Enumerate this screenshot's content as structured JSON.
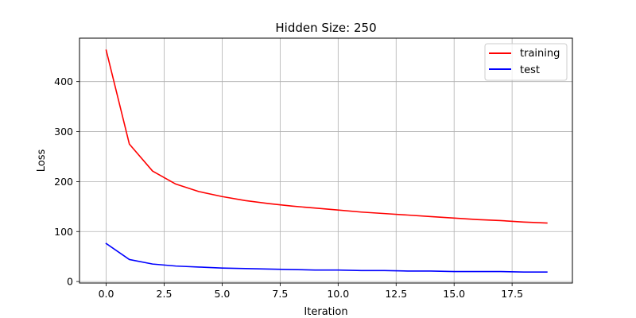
{
  "chart_data": {
    "type": "line",
    "title": "Hidden Size: 250",
    "xlabel": "Iteration",
    "ylabel": "Loss",
    "xlim": [
      -1.15,
      20.1
    ],
    "ylim": [
      -3,
      487
    ],
    "xticks": [
      0.0,
      2.5,
      5.0,
      7.5,
      10.0,
      12.5,
      15.0,
      17.5
    ],
    "xtick_labels": [
      "0.0",
      "2.5",
      "5.0",
      "7.5",
      "10.0",
      "12.5",
      "15.0",
      "17.5"
    ],
    "yticks": [
      0,
      100,
      200,
      300,
      400
    ],
    "ytick_labels": [
      "0",
      "100",
      "200",
      "300",
      "400"
    ],
    "grid": true,
    "legend_position": "top-right",
    "x": [
      0,
      1,
      2,
      3,
      4,
      5,
      6,
      7,
      8,
      9,
      10,
      11,
      12,
      13,
      14,
      15,
      16,
      17,
      18,
      19
    ],
    "series": [
      {
        "name": "training",
        "color": "#ff0000",
        "values": [
          463,
          275,
          221,
          195,
          180,
          170,
          162,
          156,
          151,
          147,
          143,
          139,
          136,
          133,
          130,
          127,
          124,
          122,
          119,
          117
        ]
      },
      {
        "name": "test",
        "color": "#0000ff",
        "values": [
          76,
          44,
          35,
          31,
          29,
          27,
          26,
          25,
          24,
          23,
          23,
          22,
          22,
          21,
          21,
          20,
          20,
          20,
          19,
          19
        ]
      }
    ]
  }
}
